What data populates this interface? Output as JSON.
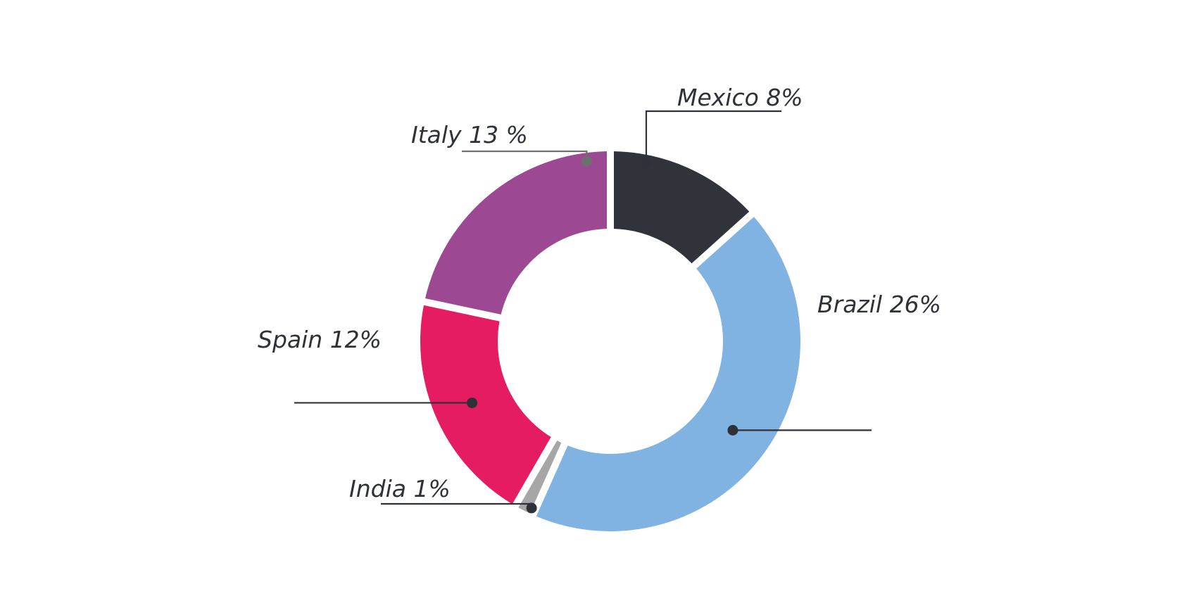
{
  "chart_data": {
    "type": "pie",
    "variant": "donut",
    "slices": [
      {
        "name": "Mexico",
        "label": "Mexico 8%",
        "value": 8,
        "color": "#31333b"
      },
      {
        "name": "Brazil",
        "label": "Brazil 26%",
        "value": 26,
        "color": "#80b3e1"
      },
      {
        "name": "India",
        "label": "India 1%",
        "value": 1,
        "color": "#a6a6a6"
      },
      {
        "name": "Spain",
        "label": "Spain 12%",
        "value": 12,
        "color": "#e61c63"
      },
      {
        "name": "Italy",
        "label": "Italy 13 %",
        "value": 13,
        "color": "#9c4892"
      }
    ],
    "legend": "none",
    "label_placement": "outside-with-leader-lines"
  }
}
